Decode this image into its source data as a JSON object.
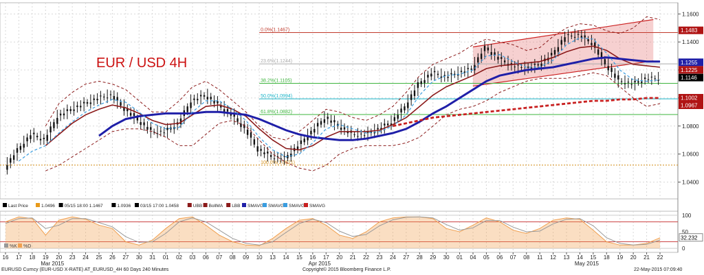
{
  "chart_data": {
    "type": "line",
    "title": "EUR / USD 4H",
    "price_axis": {
      "ticks": [
        "1.1600",
        "1.1400",
        "1.1200",
        "1.1000",
        "1.0800",
        "1.0600",
        "1.0400"
      ],
      "range": [
        1.028,
        1.168
      ]
    },
    "oscillator_axis": {
      "ticks": [
        "100",
        "50",
        "0"
      ],
      "range": [
        -8,
        108
      ],
      "value_label": "32.232"
    },
    "price_tags": [
      {
        "label": "1.1483",
        "value": 1.1483,
        "color": "#b01414"
      },
      {
        "label": "1.1255",
        "value": 1.1255,
        "color": "#1f1fa8"
      },
      {
        "label": "1.1225",
        "value": 1.1225,
        "color": "#b01414"
      },
      {
        "label": "1.1146",
        "value": 1.1146,
        "color": "#000000"
      },
      {
        "label": "1.1002",
        "value": 1.1002,
        "color": "#b01414"
      },
      {
        "label": "1.0967",
        "value": 1.0967,
        "color": "#b01414"
      }
    ],
    "fib_levels": [
      {
        "label": "0.0%(1.1467)",
        "value": 1.1467,
        "color": "#c0392b"
      },
      {
        "label": "23.6%(1.1244)",
        "value": 1.1244,
        "color": "#aaaaaa"
      },
      {
        "label": "38.2%(1.1105)",
        "value": 1.1105,
        "color": "#3cb43c"
      },
      {
        "label": "50.0%(1.0994)",
        "value": 1.0994,
        "color": "#19b4c8"
      },
      {
        "label": "61.8%(1.0882)",
        "value": 1.0882,
        "color": "#3cb43c"
      },
      {
        "label": "100.0%(1.0521)",
        "value": 1.0521,
        "color": "#d28c14"
      }
    ],
    "legend": [
      {
        "label": "Last Price",
        "color": "#000000"
      },
      {
        "label": "1.0496",
        "color": "#e89a1a"
      },
      {
        "label": "05/15 18:00 1.1467",
        "color": "#000000"
      },
      {
        "label": "1.0936",
        "color": "#000000"
      },
      {
        "label": "03/15 17:00 1.0458",
        "color": "#000000"
      },
      {
        "label": "UBB",
        "color": "#8b1a1a"
      },
      {
        "label": "BollMA",
        "color": "#8b1a1a"
      },
      {
        "label": "LBB",
        "color": "#8b1a1a"
      },
      {
        "label": "SMAVG",
        "color": "#1f1fa8"
      },
      {
        "label": "SMAVG",
        "color": "#3a9de0"
      },
      {
        "label": "SMAVG",
        "color": "#3a9de0"
      },
      {
        "label": "SMAVG",
        "color": "#c82020"
      }
    ],
    "osc_legend": [
      {
        "label": "%K",
        "color": "#999999"
      },
      {
        "label": "%D",
        "color": "#f0a050"
      }
    ],
    "x_ticks": [
      "16",
      "17",
      "18",
      "19",
      "20",
      "23",
      "24",
      "25",
      "26",
      "27",
      "30",
      "31",
      "01",
      "02",
      "03",
      "06",
      "07",
      "08",
      "09",
      "10",
      "13",
      "14",
      "15",
      "16",
      "17",
      "20",
      "21",
      "22",
      "23",
      "24",
      "27",
      "28",
      "29",
      "30",
      "01",
      "04",
      "05",
      "06",
      "07",
      "08",
      "11",
      "12",
      "13",
      "14",
      "15",
      "18",
      "19",
      "20",
      "21",
      "22"
    ],
    "month_labels": [
      {
        "label": "Mar 2015",
        "tick_index": 3
      },
      {
        "label": "Apr 2015",
        "tick_index": 23
      },
      {
        "label": "May 2015",
        "tick_index": 43
      }
    ],
    "series": [
      {
        "name": "Last Price",
        "color": "#000000",
        "values": [
          1.05,
          1.063,
          1.074,
          1.07,
          1.087,
          1.092,
          1.096,
          1.1,
          1.102,
          1.092,
          1.084,
          1.076,
          1.076,
          1.082,
          1.098,
          1.102,
          1.095,
          1.088,
          1.078,
          1.063,
          1.058,
          1.057,
          1.066,
          1.076,
          1.086,
          1.08,
          1.074,
          1.074,
          1.078,
          1.083,
          1.094,
          1.11,
          1.118,
          1.115,
          1.118,
          1.121,
          1.136,
          1.128,
          1.123,
          1.121,
          1.124,
          1.131,
          1.144,
          1.145,
          1.139,
          1.124,
          1.112,
          1.11,
          1.114,
          1.114
        ]
      },
      {
        "name": "UBB",
        "color": "#8b1a1a",
        "values": [
          null,
          null,
          null,
          1.08,
          1.096,
          1.104,
          1.11,
          1.112,
          1.11,
          1.106,
          1.098,
          1.09,
          1.09,
          1.098,
          1.108,
          1.112,
          1.106,
          1.098,
          1.09,
          1.08,
          1.072,
          1.07,
          1.076,
          1.084,
          1.092,
          1.09,
          1.086,
          1.084,
          1.088,
          1.094,
          1.104,
          1.116,
          1.124,
          1.128,
          1.132,
          1.138,
          1.142,
          1.14,
          1.138,
          1.134,
          1.136,
          1.144,
          1.15,
          1.153,
          1.152,
          1.148,
          1.146,
          1.15,
          1.158,
          1.156
        ]
      },
      {
        "name": "BollMA",
        "color": "#8b1a1a",
        "values": [
          null,
          null,
          null,
          1.066,
          1.074,
          1.082,
          1.088,
          1.092,
          1.095,
          1.093,
          1.089,
          1.084,
          1.081,
          1.082,
          1.088,
          1.094,
          1.095,
          1.092,
          1.087,
          1.078,
          1.07,
          1.064,
          1.063,
          1.066,
          1.072,
          1.076,
          1.076,
          1.076,
          1.077,
          1.081,
          1.086,
          1.094,
          1.102,
          1.108,
          1.112,
          1.116,
          1.121,
          1.123,
          1.124,
          1.125,
          1.126,
          1.129,
          1.133,
          1.136,
          1.137,
          1.134,
          1.128,
          1.124,
          1.123,
          1.122
        ]
      },
      {
        "name": "LBB",
        "color": "#8b1a1a",
        "values": [
          null,
          null,
          null,
          1.048,
          1.052,
          1.058,
          1.064,
          1.07,
          1.076,
          1.078,
          1.078,
          1.076,
          1.072,
          1.066,
          1.066,
          1.074,
          1.082,
          1.084,
          1.08,
          1.07,
          1.06,
          1.054,
          1.05,
          1.048,
          1.052,
          1.06,
          1.064,
          1.066,
          1.066,
          1.066,
          1.068,
          1.072,
          1.08,
          1.088,
          1.092,
          1.094,
          1.098,
          1.104,
          1.108,
          1.112,
          1.114,
          1.114,
          1.114,
          1.116,
          1.118,
          1.116,
          1.108,
          1.1,
          1.094,
          1.096
        ]
      },
      {
        "name": "SMAVG",
        "color": "#1f1fa8",
        "values": [
          null,
          null,
          null,
          null,
          null,
          null,
          null,
          1.073,
          1.08,
          1.085,
          1.087,
          1.088,
          1.089,
          1.089,
          1.089,
          1.09,
          1.09,
          1.089,
          1.088,
          1.085,
          1.081,
          1.077,
          1.074,
          1.072,
          1.071,
          1.07,
          1.07,
          1.071,
          1.073,
          1.075,
          1.078,
          1.083,
          1.089,
          1.094,
          1.1,
          1.106,
          1.112,
          1.116,
          1.118,
          1.12,
          1.121,
          1.122,
          1.124,
          1.126,
          1.128,
          1.129,
          1.128,
          1.127,
          1.126,
          1.126
        ]
      },
      {
        "name": "SMAVG",
        "color": "#3a9de0",
        "values": [
          null,
          1.055,
          1.062,
          1.066,
          1.075,
          1.083,
          1.09,
          1.095,
          1.099,
          1.097,
          1.09,
          1.082,
          1.078,
          1.079,
          1.09,
          1.098,
          1.098,
          1.092,
          1.084,
          1.072,
          1.063,
          1.058,
          1.06,
          1.068,
          1.078,
          1.081,
          1.078,
          1.075,
          1.076,
          1.08,
          1.088,
          1.102,
          1.112,
          1.116,
          1.117,
          1.12,
          1.13,
          1.131,
          1.126,
          1.122,
          1.122,
          1.127,
          1.138,
          1.143,
          1.142,
          1.132,
          1.12,
          1.113,
          1.112,
          1.113
        ]
      },
      {
        "name": "SMAVG",
        "color": "#c82020",
        "values": [
          null,
          null,
          null,
          null,
          null,
          null,
          null,
          null,
          null,
          null,
          null,
          null,
          null,
          null,
          null,
          null,
          null,
          null,
          null,
          null,
          null,
          null,
          null,
          null,
          null,
          null,
          null,
          null,
          null,
          1.08,
          1.082,
          1.084,
          1.086,
          1.087,
          1.088,
          1.089,
          1.09,
          1.091,
          1.092,
          1.093,
          1.094,
          1.095,
          1.096,
          1.097,
          1.098,
          1.098,
          1.099,
          1.099,
          1.1,
          1.1
        ]
      }
    ],
    "oscillator_series": [
      {
        "name": "%K",
        "color": "#f0a050",
        "values": [
          80,
          95,
          90,
          40,
          85,
          95,
          88,
          70,
          60,
          20,
          10,
          25,
          60,
          90,
          95,
          70,
          40,
          20,
          10,
          8,
          30,
          60,
          85,
          90,
          70,
          40,
          30,
          50,
          80,
          92,
          95,
          95,
          90,
          60,
          50,
          70,
          92,
          80,
          55,
          45,
          60,
          85,
          92,
          88,
          55,
          20,
          10,
          10,
          15,
          32
        ]
      },
      {
        "name": "%D",
        "color": "#999999",
        "values": [
          75,
          90,
          92,
          60,
          70,
          90,
          90,
          78,
          65,
          35,
          18,
          20,
          45,
          80,
          92,
          80,
          55,
          30,
          15,
          10,
          20,
          48,
          75,
          88,
          78,
          52,
          36,
          42,
          68,
          86,
          94,
          95,
          92,
          72,
          55,
          62,
          84,
          84,
          64,
          50,
          52,
          74,
          88,
          90,
          68,
          32,
          15,
          10,
          12,
          25
        ]
      }
    ]
  },
  "status": {
    "left": "EURUSD Curncy (EUR-USD X-RATE) AT_EURUSD_4H 60 Days 240 Minutes",
    "center": "Copyright© 2015 Bloomberg Finance L.P.",
    "right": "22-May-2015 07:09:40"
  }
}
